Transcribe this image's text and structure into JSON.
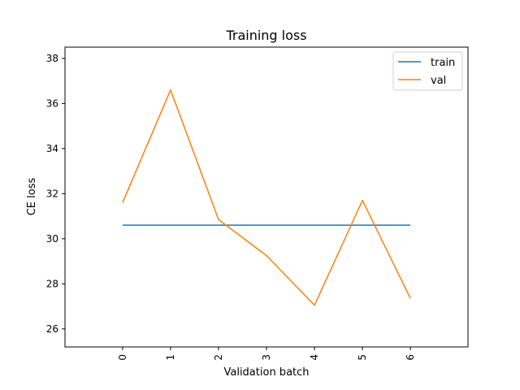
{
  "chart_data": {
    "type": "line",
    "title": "Training loss",
    "xlabel": "Validation batch",
    "ylabel": "CE loss",
    "x": [
      0,
      1,
      2,
      3,
      4,
      5,
      6
    ],
    "x_ticks": [
      "0",
      "1",
      "2",
      "3",
      "4",
      "5",
      "6"
    ],
    "y_ticks": [
      "26",
      "28",
      "30",
      "32",
      "34",
      "36",
      "38"
    ],
    "xlim": [
      -1.2,
      7.2
    ],
    "ylim": [
      25.2,
      38.5
    ],
    "grid": false,
    "legend_position": "top-right",
    "series": [
      {
        "name": "train",
        "color": "#1f77b4",
        "values": [
          30.6,
          30.6,
          30.6,
          30.6,
          30.6,
          30.6,
          30.6
        ]
      },
      {
        "name": "val",
        "color": "#ff7f0e",
        "values": [
          31.6,
          36.6,
          30.85,
          29.25,
          27.05,
          31.7,
          27.35
        ]
      }
    ]
  }
}
